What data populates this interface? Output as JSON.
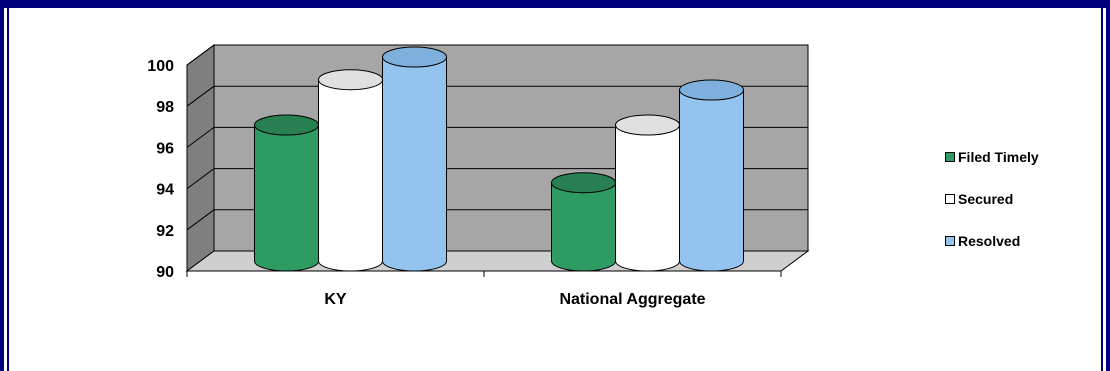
{
  "chart_data": {
    "type": "bar",
    "style": "3d-cylinder",
    "categories": [
      "KY",
      "National Aggregate"
    ],
    "series": [
      {
        "name": "Filed Timely",
        "values": [
          96.6,
          93.8
        ],
        "color": "#2e9b63"
      },
      {
        "name": "Secured",
        "values": [
          98.8,
          96.6
        ],
        "color": "#ffffff"
      },
      {
        "name": "Resolved",
        "values": [
          99.9,
          98.3
        ],
        "color": "#93c3ef"
      }
    ],
    "ylim": [
      90,
      100
    ],
    "yticks": [
      "90",
      "92",
      "94",
      "96",
      "98",
      "100"
    ],
    "grid": true,
    "legend_position": "right",
    "wall_color": "#a6a6a6"
  }
}
